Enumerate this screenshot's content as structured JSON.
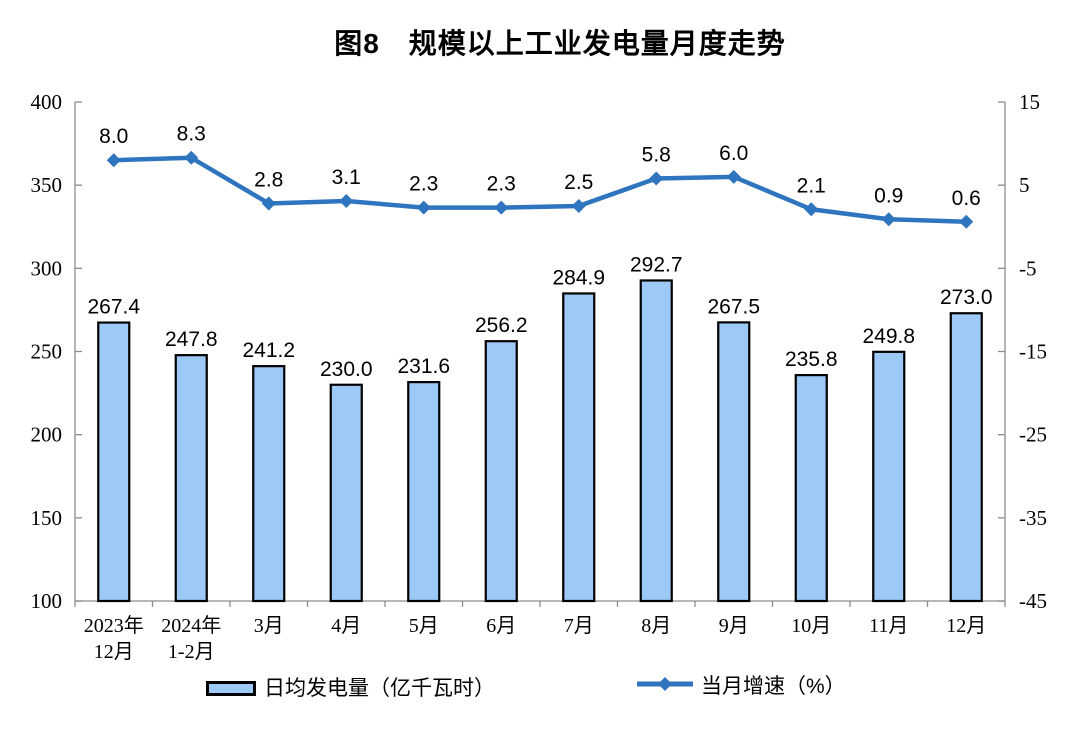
{
  "title": "图8　规模以上工业发电量月度走势",
  "chart_data": {
    "type": "bar+line",
    "title": "图8　规模以上工业发电量月度走势",
    "categories": [
      [
        "2023年",
        "12月"
      ],
      [
        "2024年",
        "1-2月"
      ],
      [
        "3月"
      ],
      [
        "4月"
      ],
      [
        "5月"
      ],
      [
        "6月"
      ],
      [
        "7月"
      ],
      [
        "8月"
      ],
      [
        "9月"
      ],
      [
        "10月"
      ],
      [
        "11月"
      ],
      [
        "12月"
      ]
    ],
    "series": [
      {
        "name": "日均发电量（亿千瓦时）",
        "type": "bar",
        "axis": "left",
        "values": [
          267.4,
          247.8,
          241.2,
          230.0,
          231.6,
          256.2,
          284.9,
          292.7,
          267.5,
          235.8,
          249.8,
          273.0
        ]
      },
      {
        "name": "当月增速（%）",
        "type": "line",
        "axis": "right",
        "values": [
          8.0,
          8.3,
          2.8,
          3.1,
          2.3,
          2.3,
          2.5,
          5.8,
          6.0,
          2.1,
          0.9,
          0.6
        ]
      }
    ],
    "left_axis": {
      "min": 100,
      "max": 400,
      "ticks": [
        400,
        350,
        300,
        250,
        200,
        150,
        100
      ]
    },
    "right_axis": {
      "min": -45,
      "max": 15,
      "ticks": [
        15,
        5,
        -5,
        -15,
        -25,
        -35,
        -45
      ]
    },
    "grid": false,
    "legend_position": "bottom",
    "value_label_decimals": 1,
    "colors": {
      "bar_fill": "#9DC9F7",
      "bar_border": "#000000",
      "line": "#2E74BE",
      "axis_line": "#8C8C8C",
      "text": "#000000"
    }
  },
  "legend": {
    "items": [
      {
        "label": "日均发电量（亿千瓦时）",
        "swatch": "bar"
      },
      {
        "label": "当月增速（%）",
        "swatch": "line"
      }
    ]
  }
}
